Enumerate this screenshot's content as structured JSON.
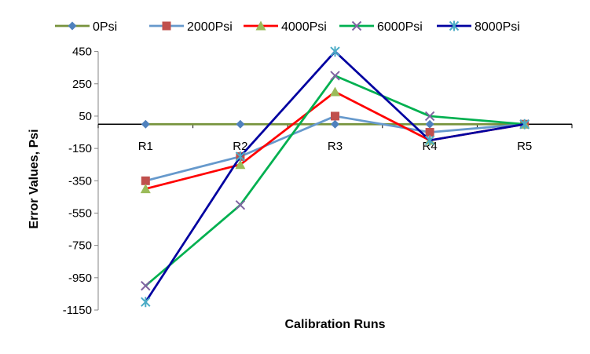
{
  "chart_data": {
    "type": "line",
    "title": "",
    "xlabel": "Calibration Runs",
    "ylabel": "Error Values, Psi",
    "categories": [
      "R1",
      "R2",
      "R3",
      "R4",
      "R5"
    ],
    "ylim": [
      -1150,
      550
    ],
    "yticks": [
      450,
      250,
      50,
      -150,
      -350,
      -550,
      -750,
      -950,
      -1150
    ],
    "grid": false,
    "legend_position": "top",
    "series": [
      {
        "name": "0Psi",
        "color": "#77933C",
        "marker": "diamond",
        "marker_color": "#4F81BD",
        "values": [
          0,
          0,
          0,
          0,
          0
        ]
      },
      {
        "name": "2000Psi",
        "color": "#6699CC",
        "marker": "square",
        "marker_color": "#C0504D",
        "values": [
          -350,
          -200,
          50,
          -50,
          0
        ]
      },
      {
        "name": "4000Psi",
        "color": "#FF0000",
        "marker": "triangle",
        "marker_color": "#9BBB59",
        "values": [
          -400,
          -250,
          200,
          -100,
          0
        ]
      },
      {
        "name": "6000Psi",
        "color": "#00B050",
        "marker": "x",
        "marker_color": "#8064A2",
        "values": [
          -1000,
          -500,
          300,
          50,
          0
        ]
      },
      {
        "name": "8000Psi",
        "color": "#0000A0",
        "marker": "star",
        "marker_color": "#4BACC6",
        "values": [
          -1100,
          -200,
          450,
          -100,
          0
        ]
      }
    ]
  }
}
